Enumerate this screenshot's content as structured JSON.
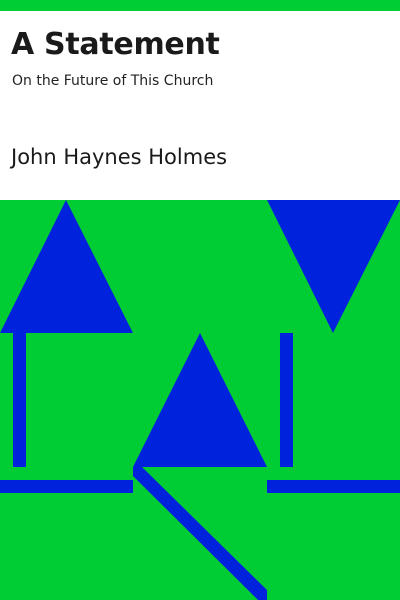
{
  "book": {
    "title": "A Statement",
    "subtitle": "On the Future of This Church",
    "author": "John Haynes Holmes"
  },
  "colors": {
    "background": "#ffffff",
    "band": "#00cc33",
    "shape": "#0022dd"
  }
}
